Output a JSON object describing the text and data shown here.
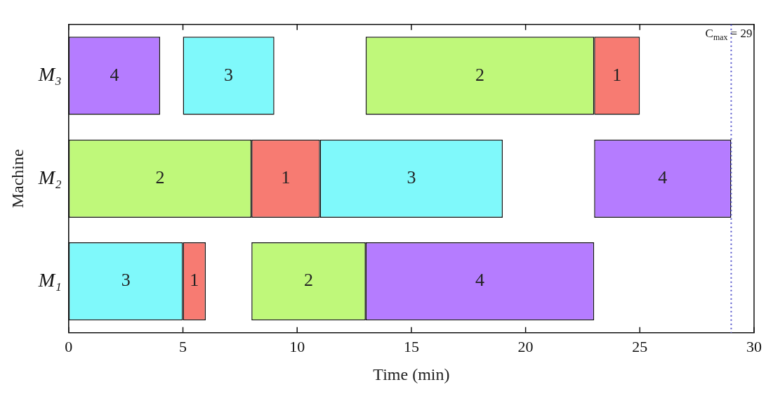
{
  "chart_data": {
    "type": "bar",
    "orientation": "horizontal",
    "xlabel": "Time (min)",
    "ylabel": "Machine",
    "categories": [
      "M₃",
      "M₂",
      "M₁"
    ],
    "series": [
      {
        "name": "1",
        "color": "#f77b72",
        "base": [
          23,
          8,
          5
        ],
        "values": [
          2,
          3,
          1
        ]
      },
      {
        "name": "2",
        "color": "#bff87a",
        "base": [
          13,
          0,
          8
        ],
        "values": [
          10,
          8,
          5
        ]
      },
      {
        "name": "3",
        "color": "#7ff9fb",
        "base": [
          5,
          11,
          0
        ],
        "values": [
          4,
          8,
          5
        ]
      },
      {
        "name": "4",
        "color": "#b57cff",
        "base": [
          0,
          23,
          13
        ],
        "values": [
          4,
          6,
          10
        ]
      }
    ],
    "xlim": [
      0,
      30
    ],
    "xticks": [
      0,
      5,
      10,
      15,
      20,
      25,
      30
    ],
    "grid": false,
    "legend": false,
    "ref_lines": [
      {
        "axis": "x",
        "value": 29,
        "label": "C$_{max}$ = 29",
        "color": "#5555cc",
        "line_style": "dotted"
      }
    ]
  }
}
